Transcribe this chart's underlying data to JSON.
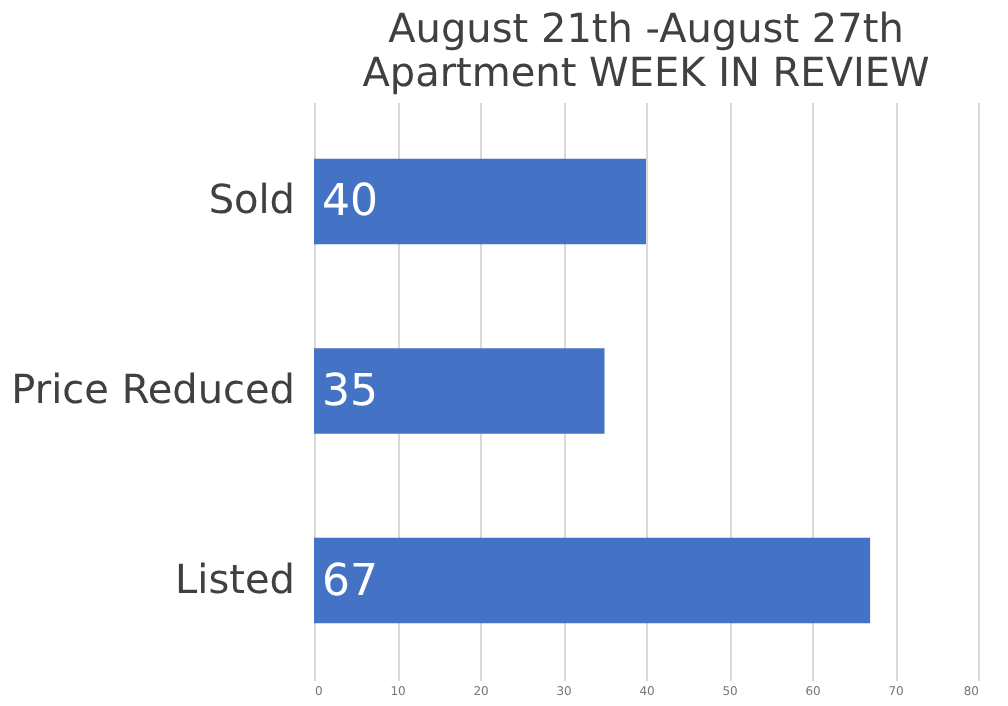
{
  "chart_data": {
    "type": "bar",
    "orientation": "horizontal",
    "title": [
      "August 21th -August 27th",
      "Apartment WEEK IN REVIEW"
    ],
    "categories": [
      "Sold",
      "Price Reduced",
      "Listed"
    ],
    "values": [
      40,
      35,
      67
    ],
    "color": "#4472c4",
    "xlim": [
      0,
      80
    ],
    "xticks": [
      0,
      10,
      20,
      30,
      40,
      50,
      60,
      70,
      80
    ],
    "grid": "x",
    "data_labels": true
  }
}
